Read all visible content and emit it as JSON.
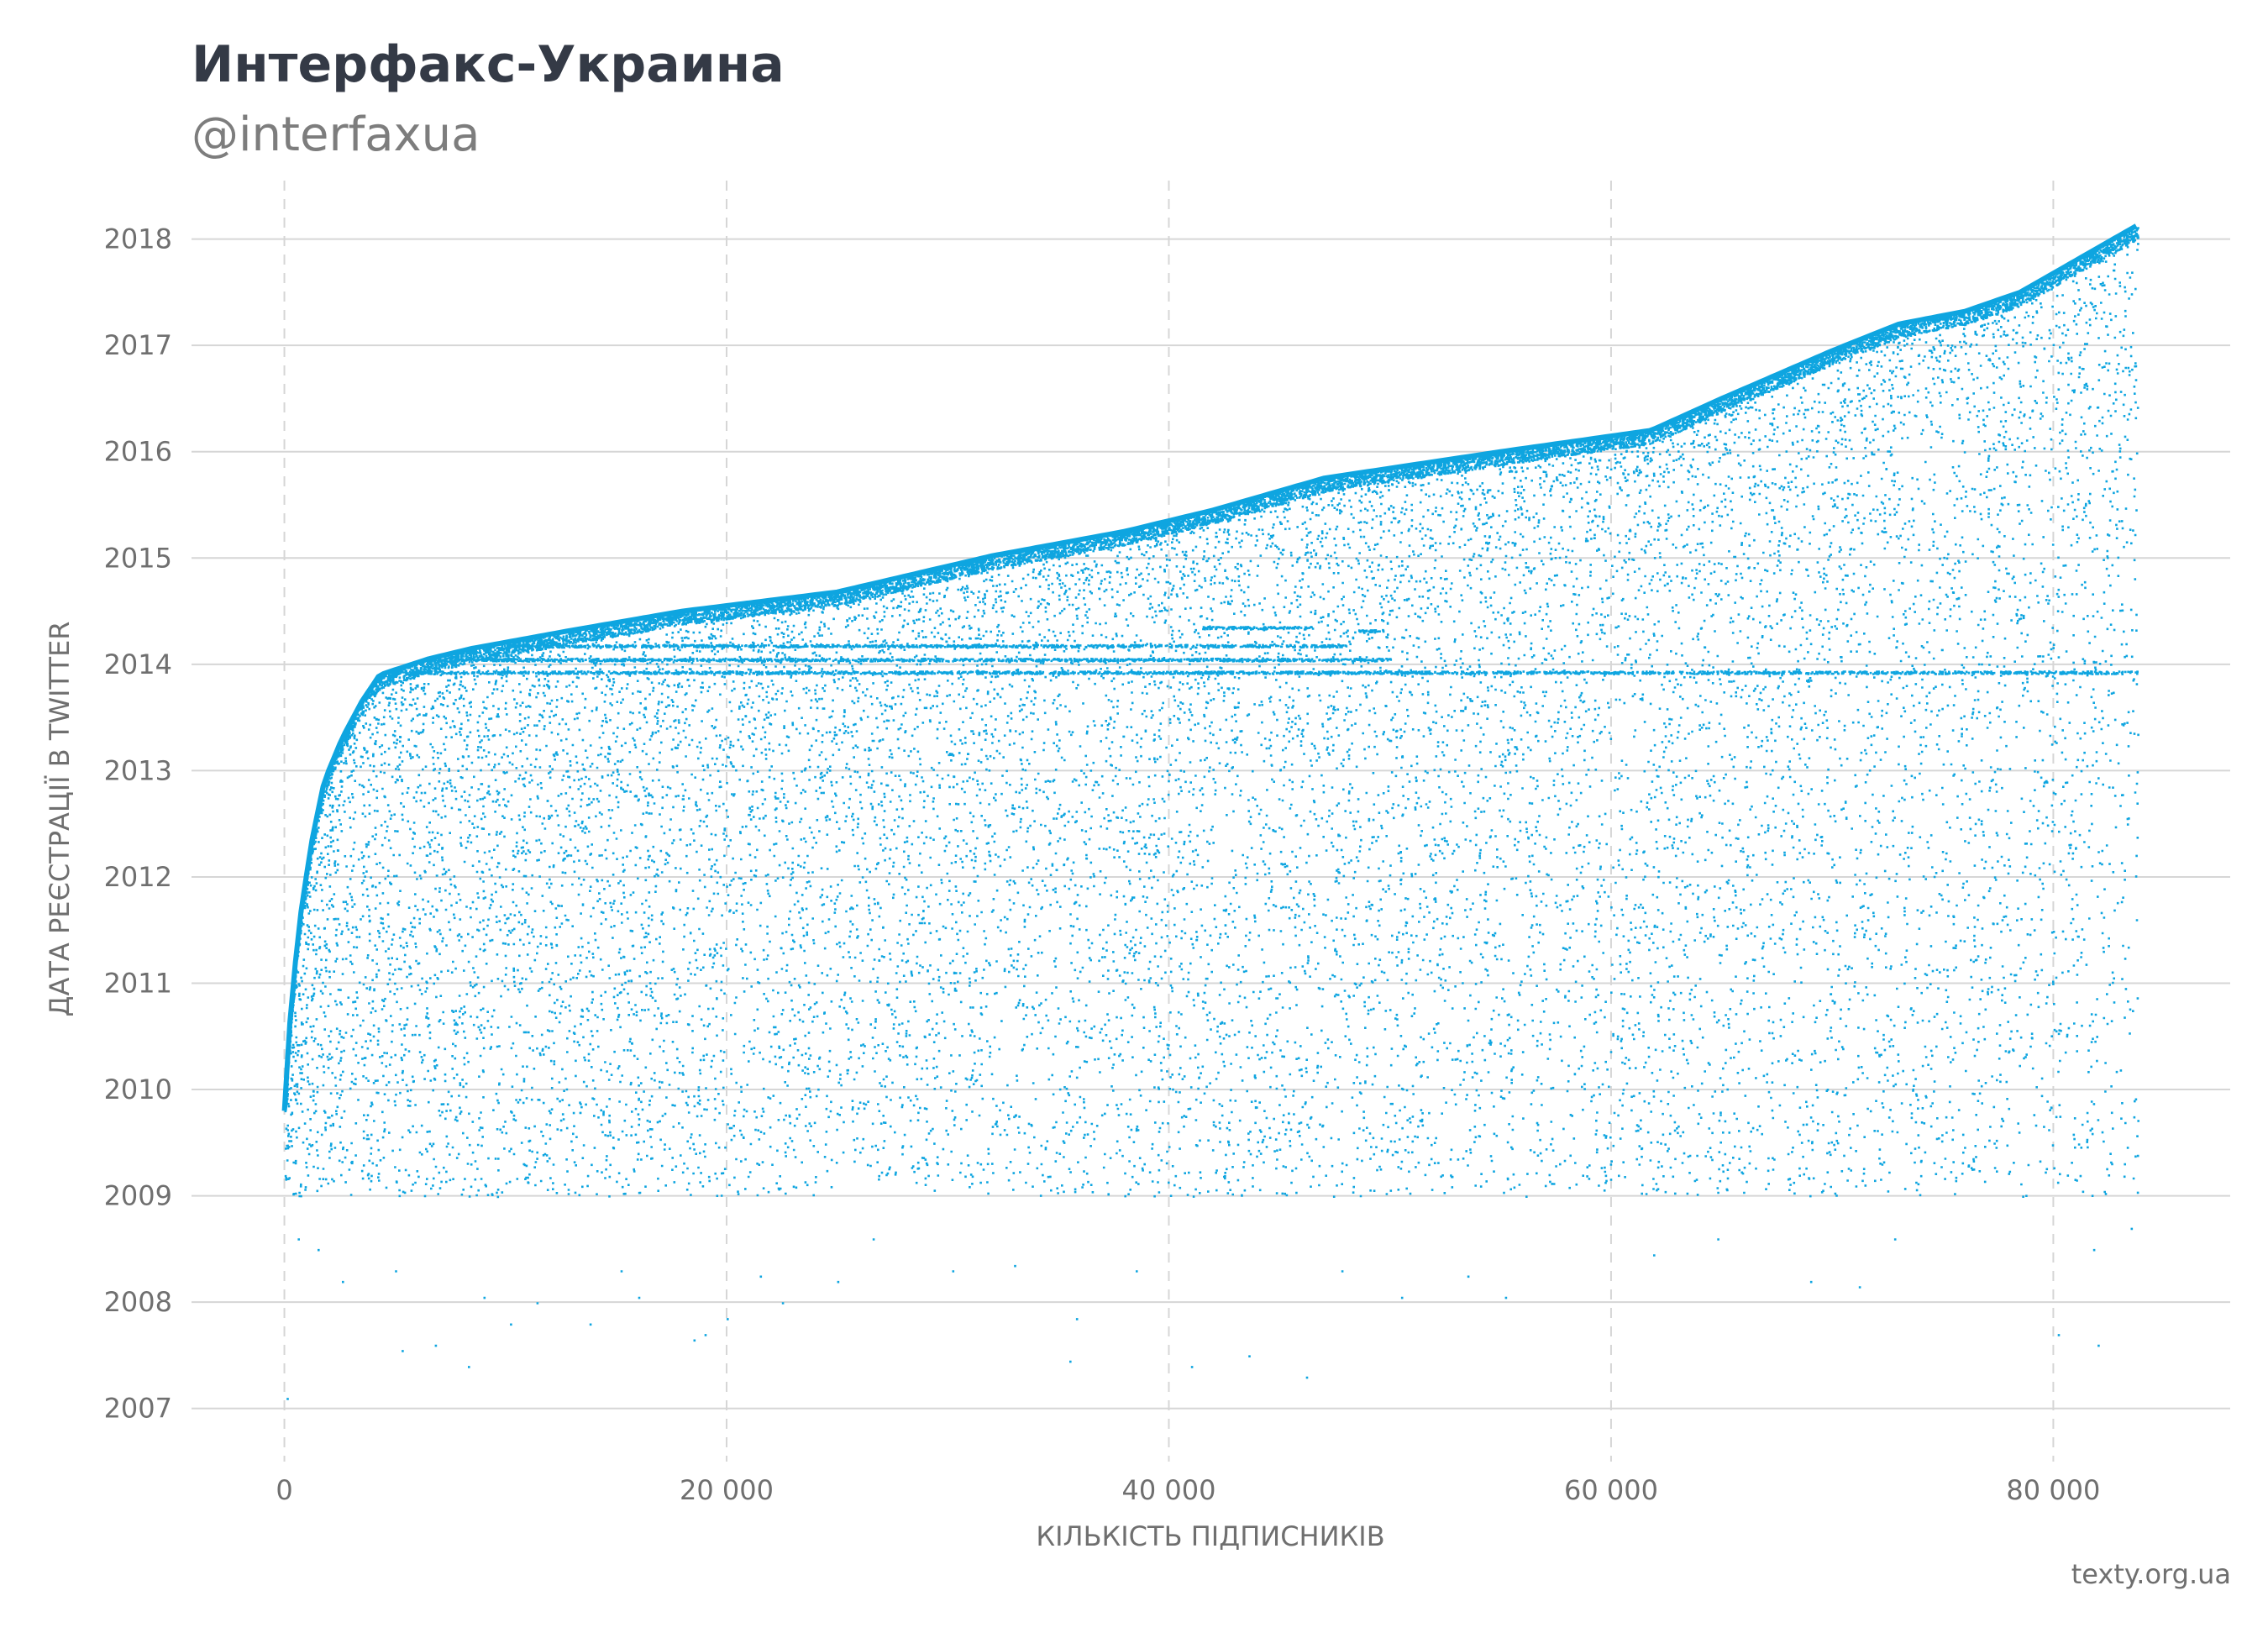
{
  "header": {
    "title": "Интерфакс-Украина",
    "subtitle": "@interfaxua"
  },
  "source": "texty.org.ua",
  "colors": {
    "points": "#0ea5e0",
    "grid": "#d6d6d6",
    "text": "#6f6f6f",
    "title": "#343a46"
  },
  "chart_data": {
    "type": "scatter",
    "xlabel": "КІЛЬКІСТЬ ПІДПИСНИКІВ",
    "ylabel": "ДАТА РЕЄСТРАЦІЇ В TWITTER",
    "xlim": [
      -4200,
      88000
    ],
    "ylim": [
      2006.5,
      2018.55
    ],
    "x_ticks": [
      0,
      20000,
      40000,
      60000,
      80000
    ],
    "x_tick_labels": [
      "0",
      "20 000",
      "40 000",
      "60 000",
      "80 000"
    ],
    "y_ticks": [
      2007,
      2008,
      2009,
      2010,
      2011,
      2012,
      2013,
      2014,
      2015,
      2016,
      2017,
      2018
    ],
    "y_tick_labels": [
      "2007",
      "2008",
      "2009",
      "2010",
      "2011",
      "2012",
      "2013",
      "2014",
      "2015",
      "2016",
      "2017",
      "2018"
    ],
    "grid": {
      "x": "dashed",
      "y": "solid"
    },
    "n_followers": 83800,
    "upper_envelope": [
      [
        0,
        2009.8
      ],
      [
        300,
        2010.8
      ],
      [
        700,
        2011.6
      ],
      [
        1200,
        2012.3
      ],
      [
        1800,
        2012.9
      ],
      [
        2600,
        2013.3
      ],
      [
        3500,
        2013.65
      ],
      [
        4300,
        2013.9
      ],
      [
        6500,
        2014.05
      ],
      [
        8500,
        2014.15
      ],
      [
        13000,
        2014.32
      ],
      [
        18000,
        2014.5
      ],
      [
        25000,
        2014.68
      ],
      [
        32000,
        2015.02
      ],
      [
        38000,
        2015.25
      ],
      [
        42000,
        2015.45
      ],
      [
        47000,
        2015.75
      ],
      [
        55000,
        2016.0
      ],
      [
        61800,
        2016.2
      ],
      [
        65000,
        2016.5
      ],
      [
        70000,
        2016.95
      ],
      [
        73000,
        2017.2
      ],
      [
        76000,
        2017.32
      ],
      [
        78500,
        2017.5
      ],
      [
        83800,
        2018.13
      ]
    ],
    "lower_bound": 2009.0,
    "outliers_below": [
      [
        100,
        2007.1
      ],
      [
        600,
        2008.6
      ],
      [
        1500,
        2008.5
      ],
      [
        2600,
        2008.2
      ],
      [
        5000,
        2008.3
      ],
      [
        5300,
        2007.55
      ],
      [
        6800,
        2007.6
      ],
      [
        8300,
        2007.4
      ],
      [
        9000,
        2008.05
      ],
      [
        10200,
        2007.8
      ],
      [
        11400,
        2008.0
      ],
      [
        13800,
        2007.8
      ],
      [
        15200,
        2008.3
      ],
      [
        16000,
        2008.05
      ],
      [
        18500,
        2007.65
      ],
      [
        19000,
        2007.7
      ],
      [
        20000,
        2007.85
      ],
      [
        21500,
        2008.25
      ],
      [
        22500,
        2008.0
      ],
      [
        25000,
        2008.2
      ],
      [
        26600,
        2008.6
      ],
      [
        30200,
        2008.3
      ],
      [
        33000,
        2008.35
      ],
      [
        35500,
        2007.45
      ],
      [
        35800,
        2007.85
      ],
      [
        38500,
        2008.3
      ],
      [
        41000,
        2007.4
      ],
      [
        43600,
        2007.5
      ],
      [
        46200,
        2007.3
      ],
      [
        47800,
        2008.3
      ],
      [
        50500,
        2008.05
      ],
      [
        53500,
        2008.25
      ],
      [
        55200,
        2008.05
      ],
      [
        61900,
        2008.45
      ],
      [
        64800,
        2008.6
      ],
      [
        69000,
        2008.2
      ],
      [
        71200,
        2008.15
      ],
      [
        72800,
        2008.6
      ],
      [
        80200,
        2007.7
      ],
      [
        81800,
        2008.5
      ],
      [
        82000,
        2007.6
      ],
      [
        83500,
        2008.7
      ]
    ],
    "dense_bands": [
      {
        "year": 2013.93,
        "from": 4300,
        "to": 83800
      },
      {
        "year": 2014.05,
        "from": 6500,
        "to": 50000
      },
      {
        "year": 2014.18,
        "from": 10000,
        "to": 48000
      },
      {
        "year": 2014.35,
        "from": 41500,
        "to": 46500
      },
      {
        "year": 2014.32,
        "from": 48500,
        "to": 49800
      }
    ]
  }
}
